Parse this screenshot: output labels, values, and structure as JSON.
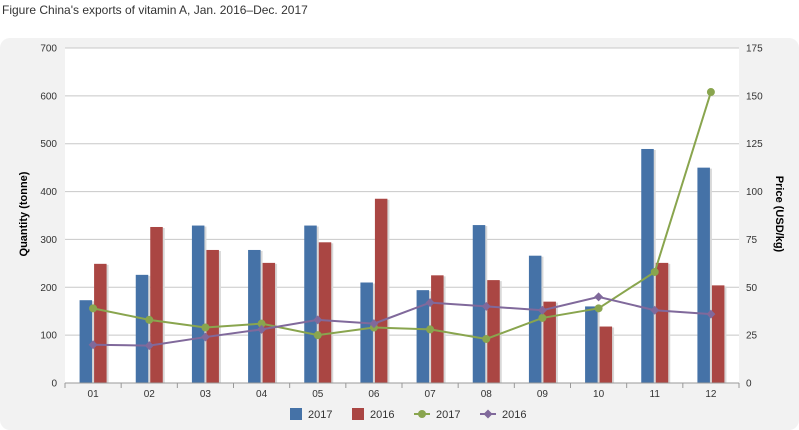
{
  "figure_title": "Figure China's exports of vitamin A, Jan. 2016–Dec. 2017",
  "chart_data": {
    "type": "bar",
    "categories": [
      "01",
      "02",
      "03",
      "04",
      "05",
      "06",
      "07",
      "08",
      "09",
      "10",
      "11",
      "12"
    ],
    "bar_series": [
      {
        "name": "2017",
        "color": "#4572a7",
        "values": [
          173,
          226,
          329,
          278,
          329,
          210,
          194,
          330,
          266,
          160,
          489,
          450
        ]
      },
      {
        "name": "2016",
        "color": "#aa4643",
        "values": [
          249,
          326,
          278,
          251,
          294,
          385,
          225,
          215,
          170,
          118,
          251,
          204
        ]
      }
    ],
    "line_series": [
      {
        "name": "2017",
        "color": "#89a54e",
        "marker": "circle",
        "values": [
          39,
          33,
          29,
          31,
          25,
          29,
          28,
          23,
          34,
          39,
          58,
          152
        ]
      },
      {
        "name": "2016",
        "color": "#80699b",
        "marker": "diamond",
        "values": [
          20,
          19.5,
          24,
          28,
          33,
          31,
          42,
          40,
          38,
          45,
          38,
          36
        ]
      }
    ],
    "ylabel": "Quantity (tonne)",
    "y2label": "Price (USD/kg)",
    "ylim": [
      0,
      700
    ],
    "y2lim": [
      0,
      175
    ],
    "yticks": [
      0,
      100,
      200,
      300,
      400,
      500,
      600,
      700
    ],
    "y2ticks": [
      0,
      25,
      50,
      75,
      100,
      125,
      150,
      175
    ],
    "grid": true,
    "legend": "bottom-center"
  }
}
